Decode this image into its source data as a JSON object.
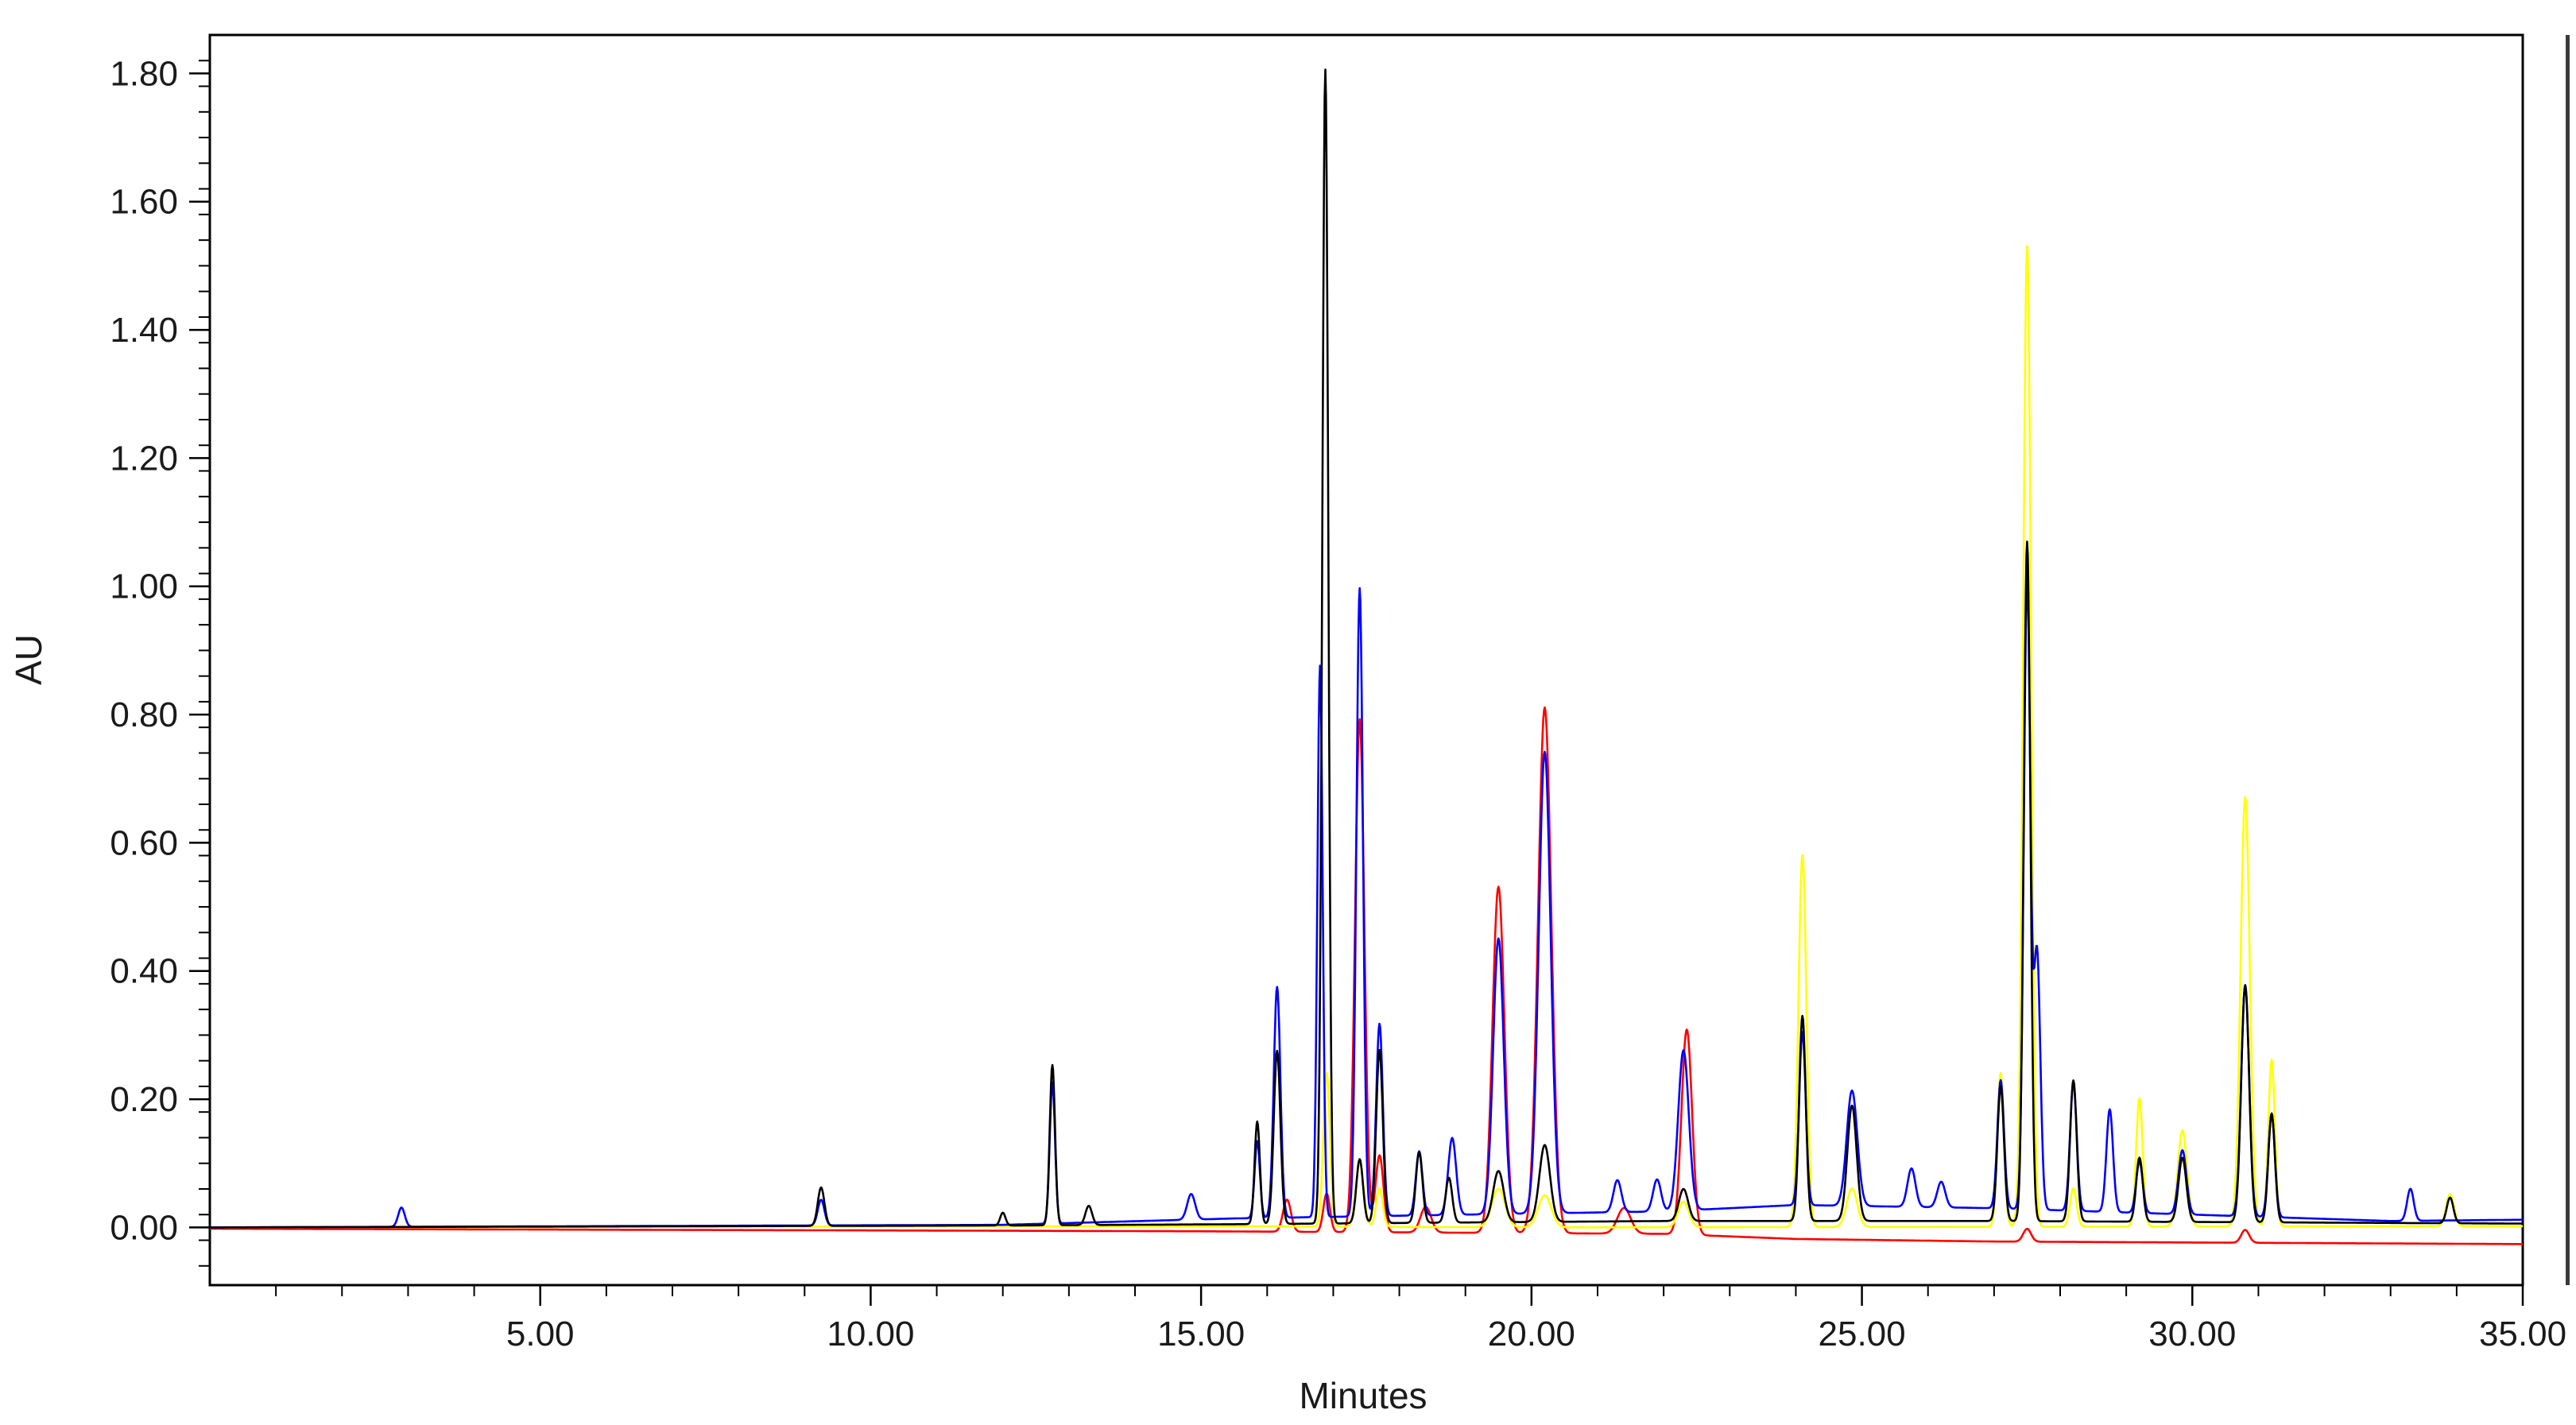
{
  "chart_data": {
    "type": "line",
    "xlabel": "Minutes",
    "ylabel": "AU",
    "xlim": [
      0.0,
      35.0
    ],
    "ylim": [
      -0.09,
      1.86
    ],
    "x_ticks": [
      {
        "value": 5,
        "label": "5.00"
      },
      {
        "value": 10,
        "label": "10.00"
      },
      {
        "value": 15,
        "label": "15.00"
      },
      {
        "value": 20,
        "label": "20.00"
      },
      {
        "value": 25,
        "label": "25.00"
      },
      {
        "value": 30,
        "label": "30.00"
      },
      {
        "value": 35,
        "label": "35.00"
      }
    ],
    "y_ticks": [
      {
        "value": 0.0,
        "label": "0.00"
      },
      {
        "value": 0.2,
        "label": "0.20"
      },
      {
        "value": 0.4,
        "label": "0.40"
      },
      {
        "value": 0.6,
        "label": "0.60"
      },
      {
        "value": 0.8,
        "label": "0.80"
      },
      {
        "value": 1.0,
        "label": "1.00"
      },
      {
        "value": 1.2,
        "label": "1.20"
      },
      {
        "value": 1.4,
        "label": "1.40"
      },
      {
        "value": 1.6,
        "label": "1.60"
      },
      {
        "value": 1.8,
        "label": "1.80"
      }
    ],
    "grid": false,
    "legend": "none",
    "series": [
      {
        "color": "#ff0000",
        "baseline": [
          [
            0,
            -0.002
          ],
          [
            15,
            -0.006
          ],
          [
            22,
            -0.01
          ],
          [
            24,
            -0.018
          ],
          [
            27,
            -0.022
          ],
          [
            35,
            -0.026
          ]
        ],
        "peaks": [
          [
            16.3,
            0.05,
            0.06
          ],
          [
            16.9,
            0.06,
            0.05
          ],
          [
            17.4,
            0.8,
            0.07
          ],
          [
            17.7,
            0.12,
            0.06
          ],
          [
            18.4,
            0.04,
            0.08
          ],
          [
            19.5,
            0.54,
            0.09
          ],
          [
            20.2,
            0.82,
            0.1
          ],
          [
            21.4,
            0.04,
            0.1
          ],
          [
            22.35,
            0.32,
            0.08
          ],
          [
            27.5,
            0.02,
            0.06
          ],
          [
            30.8,
            0.02,
            0.06
          ]
        ]
      },
      {
        "color": "#ffff00",
        "baseline": [
          [
            0,
            0.0
          ],
          [
            15,
            0.002
          ],
          [
            20,
            0.0
          ],
          [
            35,
            0.002
          ]
        ],
        "peaks": [
          [
            16.9,
            0.24,
            0.05
          ],
          [
            17.4,
            0.1,
            0.06
          ],
          [
            17.7,
            0.06,
            0.05
          ],
          [
            19.5,
            0.06,
            0.1
          ],
          [
            20.2,
            0.05,
            0.1
          ],
          [
            22.3,
            0.04,
            0.08
          ],
          [
            24.1,
            0.58,
            0.06
          ],
          [
            24.85,
            0.06,
            0.08
          ],
          [
            27.1,
            0.24,
            0.05
          ],
          [
            27.5,
            1.53,
            0.06
          ],
          [
            28.2,
            0.06,
            0.05
          ],
          [
            29.2,
            0.2,
            0.05
          ],
          [
            29.85,
            0.15,
            0.07
          ],
          [
            30.8,
            0.67,
            0.07
          ],
          [
            31.2,
            0.26,
            0.05
          ],
          [
            33.9,
            0.05,
            0.06
          ]
        ]
      },
      {
        "color": "#0000ff",
        "baseline": [
          [
            0,
            0.0
          ],
          [
            12,
            0.004
          ],
          [
            15.5,
            0.014
          ],
          [
            22,
            0.025
          ],
          [
            24,
            0.035
          ],
          [
            27,
            0.03
          ],
          [
            33,
            0.01
          ],
          [
            35,
            0.012
          ]
        ],
        "peaks": [
          [
            2.9,
            0.03,
            0.05
          ],
          [
            9.25,
            0.04,
            0.05
          ],
          [
            12.75,
            0.22,
            0.04
          ],
          [
            14.85,
            0.04,
            0.06
          ],
          [
            15.85,
            0.12,
            0.04
          ],
          [
            16.15,
            0.36,
            0.05
          ],
          [
            16.8,
            0.86,
            0.04
          ],
          [
            17.4,
            0.98,
            0.05
          ],
          [
            17.7,
            0.3,
            0.05
          ],
          [
            18.3,
            0.1,
            0.05
          ],
          [
            18.8,
            0.12,
            0.06
          ],
          [
            19.5,
            0.43,
            0.08
          ],
          [
            20.2,
            0.72,
            0.09
          ],
          [
            21.3,
            0.05,
            0.06
          ],
          [
            21.9,
            0.05,
            0.06
          ],
          [
            22.3,
            0.25,
            0.08
          ],
          [
            24.1,
            0.27,
            0.05
          ],
          [
            24.85,
            0.18,
            0.08
          ],
          [
            25.75,
            0.06,
            0.06
          ],
          [
            26.2,
            0.04,
            0.06
          ],
          [
            27.1,
            0.2,
            0.05
          ],
          [
            27.5,
            0.98,
            0.05
          ],
          [
            27.65,
            0.4,
            0.05
          ],
          [
            28.2,
            0.2,
            0.05
          ],
          [
            28.75,
            0.16,
            0.05
          ],
          [
            29.2,
            0.08,
            0.05
          ],
          [
            29.85,
            0.1,
            0.06
          ],
          [
            30.8,
            0.36,
            0.06
          ],
          [
            31.2,
            0.16,
            0.05
          ],
          [
            33.3,
            0.05,
            0.05
          ]
        ]
      },
      {
        "color": "#000000",
        "baseline": [
          [
            0,
            0.0
          ],
          [
            12,
            0.003
          ],
          [
            15.5,
            0.005
          ],
          [
            22,
            0.01
          ],
          [
            27,
            0.01
          ],
          [
            35,
            0.006
          ]
        ],
        "peaks": [
          [
            9.25,
            0.06,
            0.05
          ],
          [
            12.0,
            0.02,
            0.04
          ],
          [
            12.75,
            0.25,
            0.04
          ],
          [
            13.3,
            0.03,
            0.05
          ],
          [
            15.85,
            0.16,
            0.04
          ],
          [
            16.15,
            0.27,
            0.05
          ],
          [
            16.88,
            1.8,
            0.045
          ],
          [
            17.4,
            0.1,
            0.05
          ],
          [
            17.7,
            0.27,
            0.05
          ],
          [
            18.3,
            0.11,
            0.05
          ],
          [
            18.75,
            0.07,
            0.05
          ],
          [
            19.5,
            0.08,
            0.08
          ],
          [
            20.2,
            0.12,
            0.08
          ],
          [
            22.3,
            0.05,
            0.07
          ],
          [
            24.1,
            0.32,
            0.05
          ],
          [
            24.85,
            0.18,
            0.07
          ],
          [
            27.1,
            0.21,
            0.05
          ],
          [
            27.5,
            1.06,
            0.05
          ],
          [
            28.2,
            0.22,
            0.05
          ],
          [
            29.2,
            0.1,
            0.05
          ],
          [
            29.85,
            0.1,
            0.06
          ],
          [
            30.8,
            0.37,
            0.06
          ],
          [
            31.2,
            0.17,
            0.05
          ],
          [
            33.9,
            0.04,
            0.05
          ]
        ]
      }
    ]
  }
}
